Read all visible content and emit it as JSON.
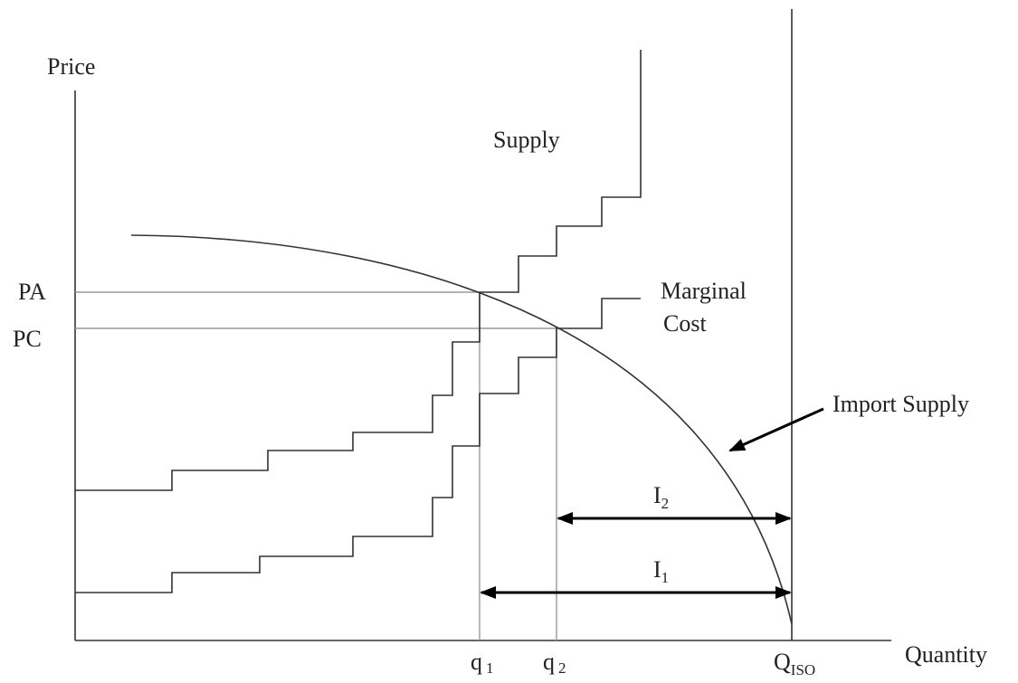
{
  "axes": {
    "y_label": "Price",
    "x_label": "Quantity"
  },
  "price_labels": [
    "PA",
    "PC"
  ],
  "curves": {
    "supply": "Supply",
    "marginal_cost": [
      "Marginal",
      "Cost"
    ],
    "import_supply": "Import Supply"
  },
  "quantity_labels": [
    {
      "base": "q",
      "sub": "1"
    },
    {
      "base": "q",
      "sub": "2"
    },
    {
      "base": "Q",
      "sub": "ISO"
    }
  ],
  "imports": [
    {
      "base": "I",
      "sub": "2"
    },
    {
      "base": "I",
      "sub": "1"
    }
  ]
}
